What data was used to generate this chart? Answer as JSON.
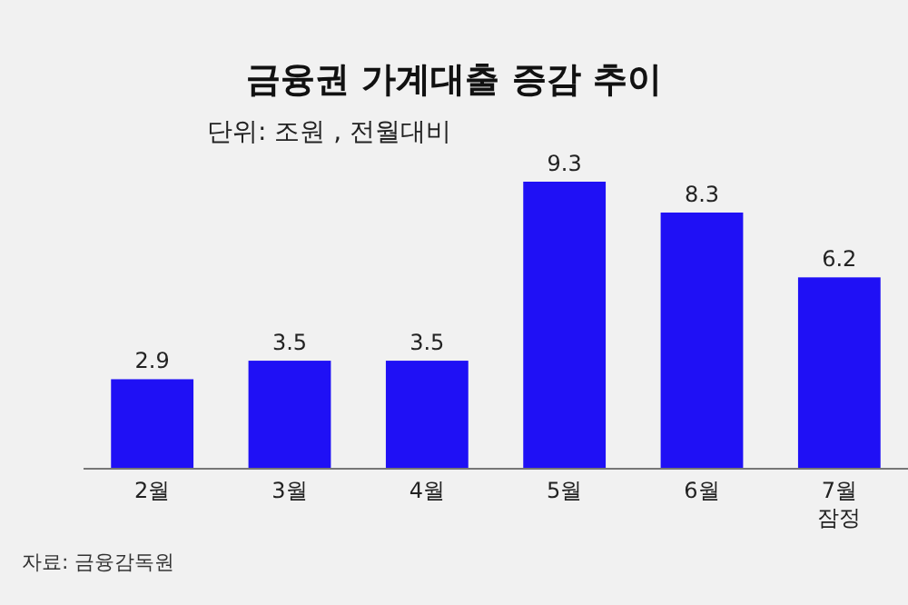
{
  "chart_data": {
    "type": "bar",
    "title": "금융권 가계대출 증감 추이",
    "subtitle": "단위: 조원 , 전월대비",
    "categories": [
      "2월",
      "3월",
      "4월",
      "5월",
      "6월",
      "7월\n잠정"
    ],
    "values": [
      2.9,
      3.5,
      3.5,
      9.3,
      8.3,
      6.2
    ],
    "color": "#1f10f5",
    "data_labels": true,
    "annotations": [
      "자료: 금융감독원"
    ]
  }
}
